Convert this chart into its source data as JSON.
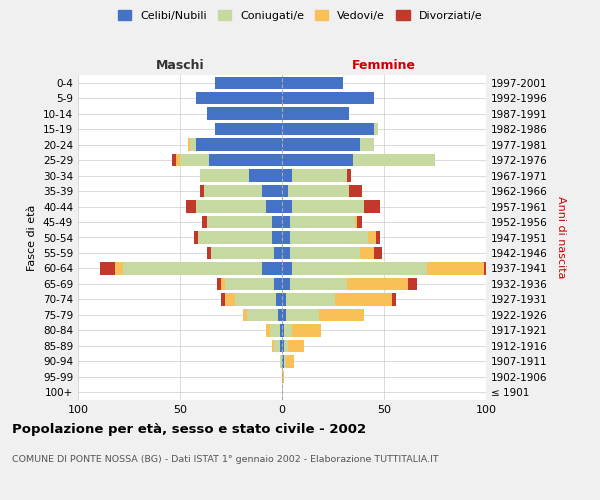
{
  "age_groups": [
    "100+",
    "95-99",
    "90-94",
    "85-89",
    "80-84",
    "75-79",
    "70-74",
    "65-69",
    "60-64",
    "55-59",
    "50-54",
    "45-49",
    "40-44",
    "35-39",
    "30-34",
    "25-29",
    "20-24",
    "15-19",
    "10-14",
    "5-9",
    "0-4"
  ],
  "anni_nascita": [
    "≤ 1901",
    "1902-1906",
    "1907-1911",
    "1912-1916",
    "1917-1921",
    "1922-1926",
    "1927-1931",
    "1932-1936",
    "1937-1941",
    "1942-1946",
    "1947-1951",
    "1952-1956",
    "1957-1961",
    "1962-1966",
    "1967-1971",
    "1972-1976",
    "1977-1981",
    "1982-1986",
    "1987-1991",
    "1992-1996",
    "1997-2001"
  ],
  "maschi": {
    "celibi": [
      0,
      0,
      0,
      1,
      1,
      2,
      3,
      4,
      10,
      4,
      5,
      5,
      8,
      10,
      16,
      36,
      42,
      33,
      37,
      42,
      33
    ],
    "coniugati": [
      0,
      0,
      1,
      3,
      5,
      15,
      20,
      24,
      68,
      31,
      36,
      32,
      34,
      28,
      24,
      14,
      3,
      0,
      0,
      0,
      0
    ],
    "vedovi": [
      0,
      0,
      0,
      1,
      2,
      2,
      5,
      2,
      4,
      0,
      0,
      0,
      0,
      0,
      0,
      2,
      1,
      0,
      0,
      0,
      0
    ],
    "divorziati": [
      0,
      0,
      0,
      0,
      0,
      0,
      2,
      2,
      7,
      2,
      2,
      2,
      5,
      2,
      0,
      2,
      0,
      0,
      0,
      0,
      0
    ]
  },
  "femmine": {
    "nubili": [
      0,
      0,
      1,
      1,
      1,
      2,
      2,
      4,
      5,
      4,
      4,
      4,
      5,
      3,
      5,
      35,
      38,
      45,
      33,
      45,
      30
    ],
    "coniugate": [
      0,
      0,
      1,
      2,
      4,
      16,
      24,
      28,
      66,
      34,
      38,
      32,
      35,
      30,
      27,
      40,
      7,
      2,
      0,
      0,
      0
    ],
    "vedove": [
      0,
      1,
      4,
      8,
      14,
      22,
      28,
      30,
      28,
      7,
      4,
      1,
      0,
      0,
      0,
      0,
      0,
      0,
      0,
      0,
      0
    ],
    "divorziate": [
      0,
      0,
      0,
      0,
      0,
      0,
      2,
      4,
      9,
      4,
      2,
      2,
      8,
      6,
      2,
      0,
      0,
      0,
      0,
      0,
      0
    ]
  },
  "colors": {
    "celibi_nubili": "#4472C4",
    "coniugati": "#C5D9A0",
    "vedovi": "#FAC058",
    "divorziati": "#C0392B"
  },
  "xlim": 100,
  "title": "Popolazione per età, sesso e stato civile - 2002",
  "subtitle": "COMUNE DI PONTE NOSSA (BG) - Dati ISTAT 1° gennaio 2002 - Elaborazione TUTTITALIA.IT",
  "ylabel_left": "Fasce di età",
  "ylabel_right": "Anni di nascita",
  "xlabel_left": "Maschi",
  "xlabel_right": "Femmine",
  "bg_color": "#f0f0f0",
  "plot_bg": "#ffffff"
}
